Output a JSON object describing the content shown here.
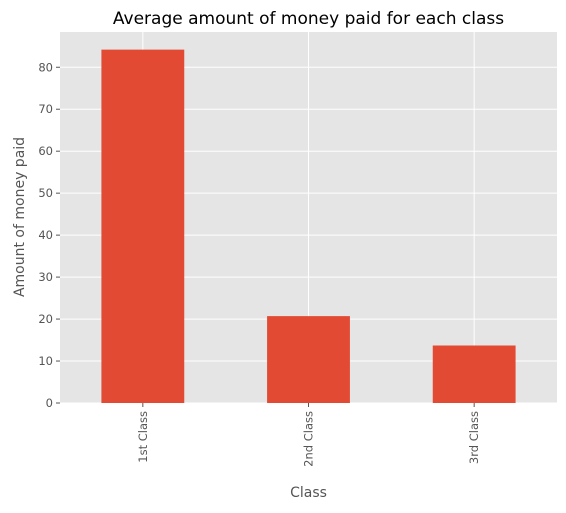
{
  "chart_data": {
    "type": "bar",
    "title": "Average amount of money paid for each class",
    "xlabel": "Class",
    "ylabel": "Amount of money paid",
    "categories": [
      "1st Class",
      "2nd Class",
      "3rd Class"
    ],
    "values": [
      84.2,
      20.7,
      13.7
    ],
    "ylim": [
      0,
      88.4
    ],
    "yticks": [
      "0",
      "10",
      "20",
      "30",
      "40",
      "50",
      "60",
      "70",
      "80"
    ],
    "grid": true,
    "legend": "none",
    "colors": {
      "bar": "#e24a33",
      "plot_background": "#e5e5e5",
      "grid": "#ffffff",
      "text": "#555555"
    }
  }
}
